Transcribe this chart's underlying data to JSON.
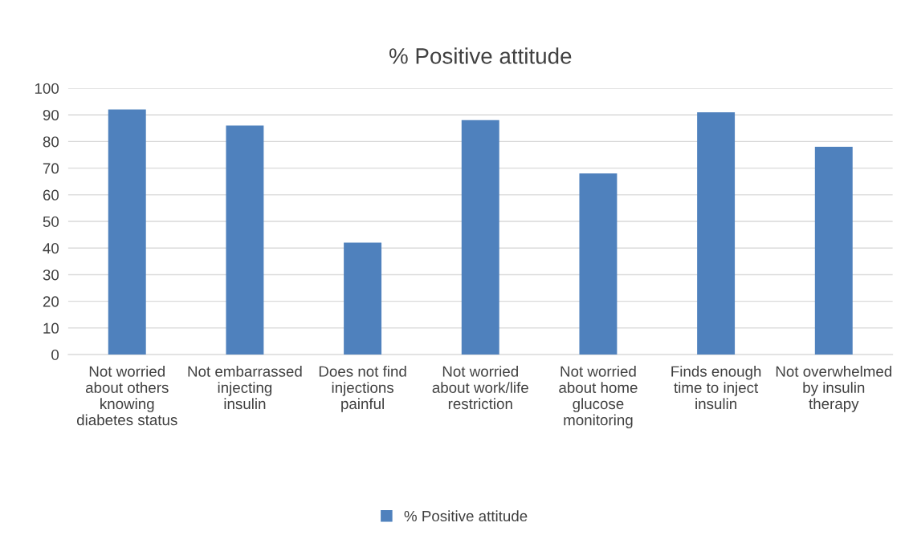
{
  "chart_data": {
    "type": "bar",
    "title": "% Positive attitude",
    "categories": [
      "Not worried about others knowing diabetes status",
      "Not embarrassed injecting insulin",
      "Does not find injections painful",
      "Not worried about work/life restriction",
      "Not worried about home glucose monitoring",
      "Finds enough time to inject insulin",
      "Not overwhelmed by insulin therapy"
    ],
    "series": [
      {
        "name": "% Positive attitude",
        "color": "#4f81bd",
        "values": [
          92,
          86,
          42,
          88,
          68,
          91,
          78
        ]
      }
    ],
    "ylim": [
      0,
      100
    ],
    "yticks": [
      0,
      10,
      20,
      30,
      40,
      50,
      60,
      70,
      80,
      90,
      100
    ],
    "grid": "y",
    "legend": "bottom"
  }
}
